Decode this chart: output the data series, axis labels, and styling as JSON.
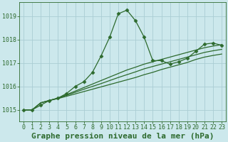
{
  "title": "Graphe pression niveau de la mer (hPa)",
  "background_color": "#cce8ec",
  "grid_color": "#aacdd4",
  "line_color": "#2d6a2d",
  "xlim": [
    -0.5,
    23.5
  ],
  "ylim": [
    1014.5,
    1019.6
  ],
  "yticks": [
    1015,
    1016,
    1017,
    1018,
    1019
  ],
  "xticks": [
    0,
    1,
    2,
    3,
    4,
    5,
    6,
    7,
    8,
    9,
    10,
    11,
    12,
    13,
    14,
    15,
    16,
    17,
    18,
    19,
    20,
    21,
    22,
    23
  ],
  "main_series": [
    1015.0,
    1015.0,
    1015.2,
    1015.4,
    1015.5,
    1015.7,
    1016.0,
    1016.2,
    1016.6,
    1017.3,
    1018.1,
    1019.1,
    1019.25,
    1018.8,
    1018.1,
    1017.1,
    1017.1,
    1016.95,
    1017.05,
    1017.2,
    1017.5,
    1017.8,
    1017.85,
    1017.75
  ],
  "flat_lines": [
    [
      1015.0,
      1015.0,
      1015.3,
      1015.4,
      1015.5,
      1015.65,
      1015.8,
      1015.95,
      1016.1,
      1016.25,
      1016.4,
      1016.55,
      1016.7,
      1016.82,
      1016.95,
      1017.05,
      1017.15,
      1017.25,
      1017.35,
      1017.45,
      1017.55,
      1017.65,
      1017.72,
      1017.78
    ],
    [
      1015.0,
      1015.0,
      1015.3,
      1015.4,
      1015.5,
      1015.62,
      1015.75,
      1015.88,
      1016.0,
      1016.12,
      1016.25,
      1016.38,
      1016.5,
      1016.62,
      1016.75,
      1016.85,
      1016.95,
      1017.05,
      1017.15,
      1017.25,
      1017.35,
      1017.45,
      1017.52,
      1017.58
    ],
    [
      1015.0,
      1015.0,
      1015.3,
      1015.4,
      1015.48,
      1015.58,
      1015.68,
      1015.78,
      1015.88,
      1015.98,
      1016.08,
      1016.18,
      1016.28,
      1016.38,
      1016.5,
      1016.6,
      1016.72,
      1016.82,
      1016.92,
      1017.02,
      1017.15,
      1017.25,
      1017.32,
      1017.38
    ]
  ],
  "marker": "D",
  "markersize": 2.5,
  "linewidth": 0.9,
  "title_fontsize": 8,
  "tick_fontsize": 6
}
